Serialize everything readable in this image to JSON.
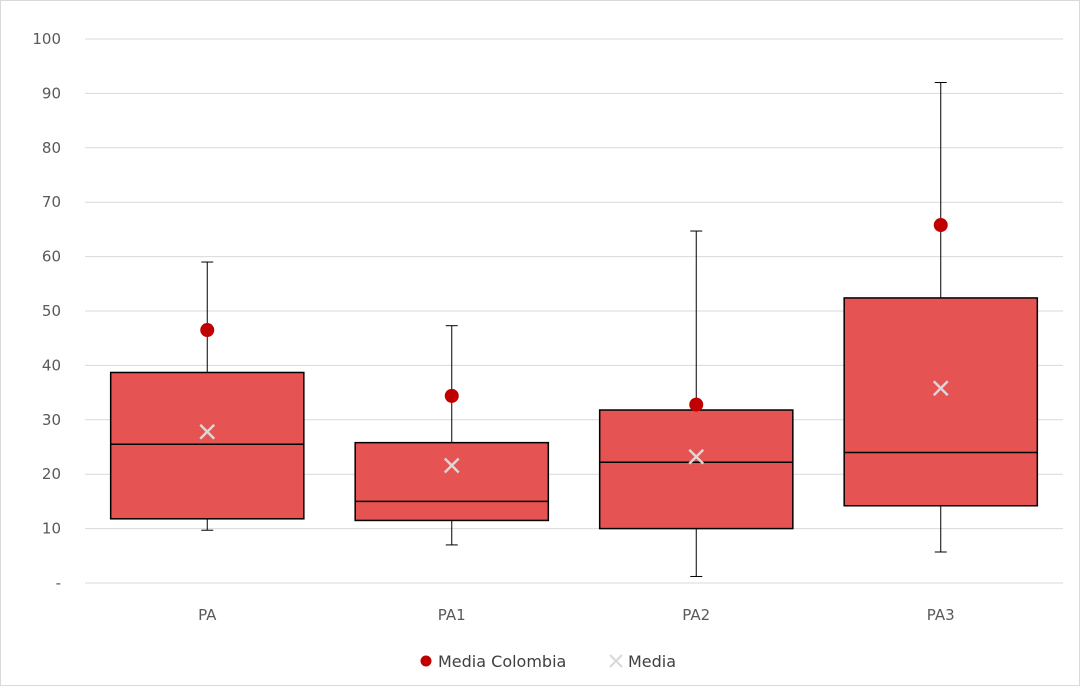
{
  "chart_data": {
    "type": "box",
    "categories": [
      "PA",
      "PA1",
      "PA2",
      "PA3"
    ],
    "y_ticks": [
      "-",
      "10",
      "20",
      "30",
      "40",
      "50",
      "60",
      "70",
      "80",
      "90",
      "100"
    ],
    "ylim": [
      0,
      100
    ],
    "grid": true,
    "legend_position": "bottom",
    "box_color": "#e55353",
    "box_stroke": "#000000",
    "boxes": [
      {
        "category": "PA",
        "min": 9.7,
        "q1": 11.8,
        "median": 25.5,
        "q3": 38.7,
        "max": 59.0
      },
      {
        "category": "PA1",
        "min": 7.0,
        "q1": 11.5,
        "median": 15.0,
        "q3": 25.8,
        "max": 47.3
      },
      {
        "category": "PA2",
        "min": 1.2,
        "q1": 10.0,
        "median": 22.2,
        "q3": 31.8,
        "max": 64.7
      },
      {
        "category": "PA3",
        "min": 5.7,
        "q1": 14.2,
        "median": 24.0,
        "q3": 52.4,
        "max": 92.0
      }
    ],
    "series": [
      {
        "name": "Media Colombia",
        "marker": "circle",
        "color": "#c00000",
        "values": [
          46.5,
          34.4,
          32.8,
          65.8
        ]
      },
      {
        "name": "Media",
        "marker": "x",
        "color": "#d9d9d9",
        "values": [
          27.8,
          21.6,
          23.2,
          35.8
        ]
      }
    ]
  }
}
